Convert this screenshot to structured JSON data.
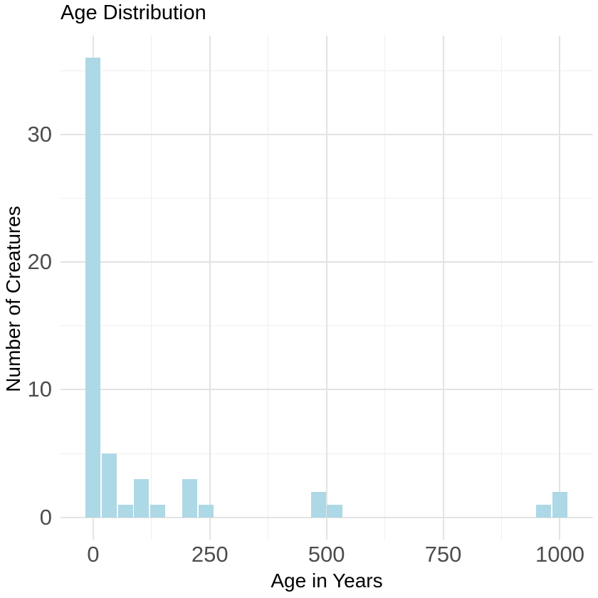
{
  "chart_data": {
    "type": "bar",
    "subtype": "histogram",
    "title": "Age Distribution",
    "xlabel": "Age in Years",
    "ylabel": "Number of Creatures",
    "bin_width": 34.48,
    "bins": [
      {
        "center": 0,
        "count": 36
      },
      {
        "center": 34.48,
        "count": 5
      },
      {
        "center": 68.97,
        "count": 1
      },
      {
        "center": 103.45,
        "count": 3
      },
      {
        "center": 137.93,
        "count": 1
      },
      {
        "center": 206.9,
        "count": 3
      },
      {
        "center": 241.38,
        "count": 1
      },
      {
        "center": 482.76,
        "count": 2
      },
      {
        "center": 517.24,
        "count": 1
      },
      {
        "center": 965.52,
        "count": 1
      },
      {
        "center": 1000,
        "count": 2
      }
    ],
    "x_ticks": [
      0,
      250,
      500,
      750,
      1000
    ],
    "x_minor": [
      125,
      375,
      625,
      875
    ],
    "y_ticks": [
      0,
      10,
      20,
      30
    ],
    "y_minor": [
      5,
      15,
      25,
      35
    ],
    "xlim": [
      -70,
      1071
    ],
    "ylim": [
      -1.75,
      37.75
    ],
    "grid": "major+minor",
    "legend": false,
    "colors": {
      "bar_fill": "#ADD8E6",
      "grid_major": "#E3E3E3",
      "grid_minor": "#EFEFEF",
      "tick_text": "#4D4D4D",
      "title_text": "#000000",
      "background": "#FFFFFF"
    }
  }
}
